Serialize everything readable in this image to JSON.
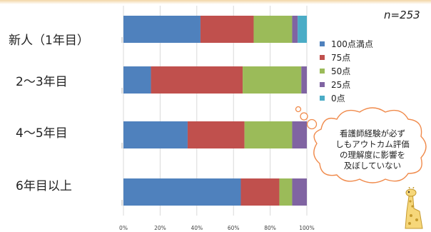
{
  "chart_data": {
    "type": "bar",
    "orientation": "horizontal",
    "stacked": true,
    "categories": [
      "新人（1年目）",
      "2〜3年目",
      "4〜5年目",
      "6年目以上"
    ],
    "series": [
      {
        "name": "100点満点",
        "color": "#4f81bd",
        "values": [
          42,
          15,
          35,
          64
        ]
      },
      {
        "name": "75点",
        "color": "#c0504d",
        "values": [
          29,
          50,
          31,
          21
        ]
      },
      {
        "name": "50点",
        "color": "#9bbb59",
        "values": [
          21,
          32,
          26,
          7
        ]
      },
      {
        "name": "25点",
        "color": "#8064a2",
        "values": [
          3,
          3,
          8,
          8
        ]
      },
      {
        "name": "0点",
        "color": "#4bacc6",
        "values": [
          5,
          0,
          0,
          0
        ]
      }
    ],
    "xlim": [
      0,
      100
    ],
    "xticks": [
      "0%",
      "20%",
      "40%",
      "60%",
      "80%",
      "100%"
    ],
    "grid": true,
    "legend_position": "right",
    "annotation_n": "n=253"
  },
  "callout": {
    "text_lines": [
      "看護師経験が必ず",
      "しもアウトカム評価",
      "の理解度に影響を",
      "及ぼしていない"
    ]
  },
  "mascot": {
    "icon": "giraffe-icon"
  }
}
